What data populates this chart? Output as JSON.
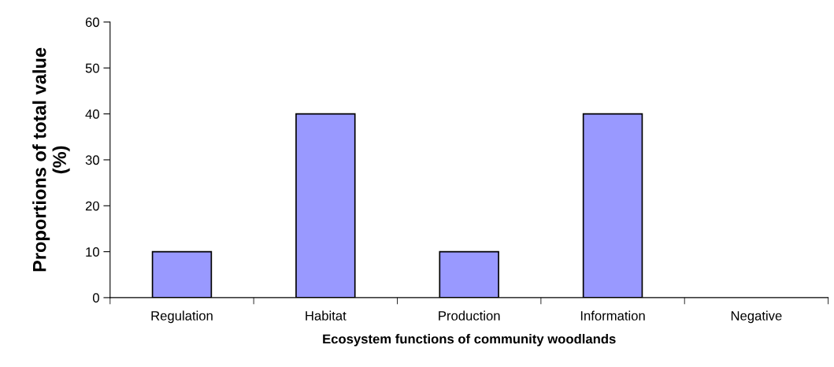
{
  "chart_data": {
    "type": "bar",
    "xlabel": "Ecosystem functions of community woodlands",
    "ylabel": "Proportions of total value\n(%)",
    "categories": [
      "Regulation",
      "Habitat",
      "Production",
      "Information",
      "Negative"
    ],
    "values": [
      10,
      40,
      10,
      40,
      0
    ],
    "color": "#9999ff",
    "ylim": [
      0,
      60
    ],
    "yticks": [
      0,
      10,
      20,
      30,
      40,
      50,
      60
    ],
    "grid": false,
    "legend": false
  }
}
